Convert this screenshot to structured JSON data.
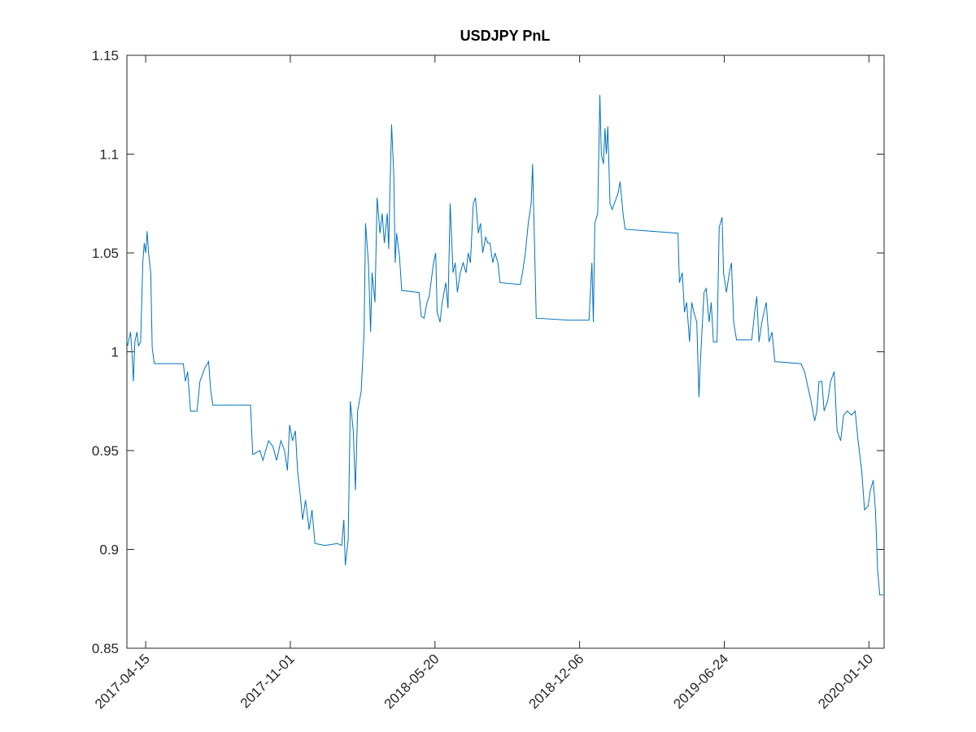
{
  "chart_data": {
    "type": "line",
    "title": "USDJPY PnL",
    "x": [
      "2017-03-20",
      "2017-03-21",
      "2017-03-25",
      "2017-03-27",
      "2017-03-29",
      "2017-03-31",
      "2017-04-03",
      "2017-04-05",
      "2017-04-08",
      "2017-04-11",
      "2017-04-13",
      "2017-04-15",
      "2017-04-17",
      "2017-04-19",
      "2017-04-22",
      "2017-04-24",
      "2017-04-27",
      "2017-06-06",
      "2017-06-09",
      "2017-06-12",
      "2017-06-16",
      "2017-06-25",
      "2017-06-29",
      "2017-07-06",
      "2017-07-11",
      "2017-07-14",
      "2017-07-17",
      "2017-09-07",
      "2017-09-10",
      "2017-09-20",
      "2017-09-24",
      "2017-10-02",
      "2017-10-08",
      "2017-10-13",
      "2017-10-19",
      "2017-10-24",
      "2017-10-28",
      "2017-10-31",
      "2017-11-04",
      "2017-11-08",
      "2017-11-11",
      "2017-11-14",
      "2017-11-18",
      "2017-11-22",
      "2017-11-27",
      "2017-12-01",
      "2017-12-05",
      "2017-12-19",
      "2018-01-05",
      "2018-01-11",
      "2018-01-14",
      "2018-01-16",
      "2018-01-20",
      "2018-01-23",
      "2018-01-27",
      "2018-01-30",
      "2018-02-02",
      "2018-02-07",
      "2018-02-11",
      "2018-02-13",
      "2018-02-17",
      "2018-02-20",
      "2018-02-22",
      "2018-02-26",
      "2018-03-01",
      "2018-03-05",
      "2018-03-08",
      "2018-03-11",
      "2018-03-15",
      "2018-03-17",
      "2018-03-19",
      "2018-03-21",
      "2018-03-24",
      "2018-03-26",
      "2018-03-28",
      "2018-04-01",
      "2018-04-04",
      "2018-04-28",
      "2018-05-01",
      "2018-05-05",
      "2018-05-09",
      "2018-05-12",
      "2018-05-18",
      "2018-05-21",
      "2018-05-23",
      "2018-05-27",
      "2018-05-30",
      "2018-06-04",
      "2018-06-07",
      "2018-06-10",
      "2018-06-14",
      "2018-06-17",
      "2018-06-20",
      "2018-06-24",
      "2018-06-28",
      "2018-07-02",
      "2018-07-05",
      "2018-07-08",
      "2018-07-12",
      "2018-07-15",
      "2018-07-19",
      "2018-07-22",
      "2018-07-25",
      "2018-07-29",
      "2018-08-01",
      "2018-08-04",
      "2018-08-08",
      "2018-08-11",
      "2018-08-15",
      "2018-08-18",
      "2018-09-15",
      "2018-09-18",
      "2018-09-22",
      "2018-09-26",
      "2018-09-30",
      "2018-10-02",
      "2018-10-04",
      "2018-10-07",
      "2018-11-21",
      "2018-12-19",
      "2018-12-23",
      "2018-12-25",
      "2018-12-27",
      "2018-12-31",
      "2019-01-03",
      "2019-01-05",
      "2019-01-08",
      "2019-01-10",
      "2019-01-12",
      "2019-01-14",
      "2019-01-17",
      "2019-01-20",
      "2019-01-23",
      "2019-01-28",
      "2019-01-31",
      "2019-02-04",
      "2019-02-07",
      "2019-03-14",
      "2019-04-21",
      "2019-04-23",
      "2019-04-27",
      "2019-04-30",
      "2019-05-03",
      "2019-05-07",
      "2019-05-10",
      "2019-05-13",
      "2019-05-17",
      "2019-05-20",
      "2019-05-22",
      "2019-05-27",
      "2019-05-30",
      "2019-06-03",
      "2019-06-06",
      "2019-06-09",
      "2019-06-14",
      "2019-06-17",
      "2019-06-21",
      "2019-06-23",
      "2019-06-27",
      "2019-07-01",
      "2019-07-04",
      "2019-07-07",
      "2019-07-11",
      "2019-08-01",
      "2019-08-05",
      "2019-08-08",
      "2019-08-11",
      "2019-08-15",
      "2019-08-18",
      "2019-08-21",
      "2019-08-25",
      "2019-08-29",
      "2019-09-02",
      "2019-10-08",
      "2019-10-13",
      "2019-10-19",
      "2019-10-22",
      "2019-10-27",
      "2019-10-30",
      "2019-11-02",
      "2019-11-06",
      "2019-11-09",
      "2019-11-14",
      "2019-11-18",
      "2019-11-23",
      "2019-11-27",
      "2019-12-02",
      "2019-12-06",
      "2019-12-11",
      "2019-12-17",
      "2019-12-22",
      "2019-12-26",
      "2019-12-31",
      "2020-01-04",
      "2020-01-09",
      "2020-01-12",
      "2020-01-16",
      "2020-01-19",
      "2020-01-22",
      "2020-01-25",
      "2020-01-30"
    ],
    "series": [
      {
        "name": "USDJPY",
        "color": "#0072bd",
        "values": [
          1.005,
          1.003,
          1.01,
          1.0,
          0.985,
          1.005,
          1.01,
          1.003,
          1.005,
          1.045,
          1.055,
          1.05,
          1.061,
          1.05,
          1.04,
          1.002,
          0.994,
          0.994,
          0.985,
          0.99,
          0.97,
          0.97,
          0.985,
          0.992,
          0.995,
          0.98,
          0.973,
          0.973,
          0.948,
          0.95,
          0.945,
          0.955,
          0.952,
          0.945,
          0.955,
          0.95,
          0.94,
          0.963,
          0.955,
          0.96,
          0.94,
          0.93,
          0.915,
          0.925,
          0.91,
          0.92,
          0.903,
          0.902,
          0.903,
          0.902,
          0.915,
          0.892,
          0.905,
          0.975,
          0.96,
          0.93,
          0.97,
          0.98,
          1.01,
          1.065,
          1.045,
          1.01,
          1.04,
          1.025,
          1.078,
          1.06,
          1.07,
          1.055,
          1.07,
          1.052,
          1.085,
          1.115,
          1.09,
          1.045,
          1.06,
          1.048,
          1.031,
          1.03,
          1.018,
          1.017,
          1.025,
          1.028,
          1.045,
          1.05,
          1.02,
          1.015,
          1.025,
          1.035,
          1.022,
          1.075,
          1.04,
          1.045,
          1.03,
          1.04,
          1.045,
          1.04,
          1.05,
          1.045,
          1.075,
          1.078,
          1.06,
          1.065,
          1.05,
          1.058,
          1.055,
          1.055,
          1.045,
          1.05,
          1.045,
          1.035,
          1.034,
          1.04,
          1.05,
          1.065,
          1.075,
          1.095,
          1.065,
          1.017,
          1.016,
          1.016,
          1.045,
          1.015,
          1.065,
          1.07,
          1.13,
          1.1,
          1.095,
          1.113,
          1.1,
          1.114,
          1.075,
          1.072,
          1.075,
          1.08,
          1.086,
          1.07,
          1.062,
          1.061,
          1.06,
          1.035,
          1.04,
          1.02,
          1.025,
          1.005,
          1.025,
          1.02,
          1.015,
          0.977,
          0.995,
          1.03,
          1.032,
          1.015,
          1.025,
          1.005,
          1.005,
          1.063,
          1.068,
          1.04,
          1.03,
          1.04,
          1.045,
          1.015,
          1.006,
          1.006,
          1.02,
          1.028,
          1.005,
          1.015,
          1.02,
          1.025,
          1.005,
          1.01,
          0.995,
          0.994,
          0.99,
          0.98,
          0.975,
          0.965,
          0.97,
          0.985,
          0.985,
          0.97,
          0.975,
          0.985,
          0.99,
          0.96,
          0.955,
          0.968,
          0.97,
          0.968,
          0.97,
          0.955,
          0.94,
          0.92,
          0.922,
          0.93,
          0.935,
          0.92,
          0.89,
          0.877,
          0.877
        ]
      }
    ],
    "xlim": [
      "2017-03-20",
      "2020-01-31"
    ],
    "xticks": [
      "2017-04-15",
      "2017-11-01",
      "2018-05-20",
      "2018-12-06",
      "2019-06-24",
      "2020-01-10"
    ],
    "ylim": [
      0.85,
      1.15
    ],
    "yticks": [
      0.85,
      0.9,
      0.95,
      1,
      1.05,
      1.1,
      1.15
    ]
  }
}
